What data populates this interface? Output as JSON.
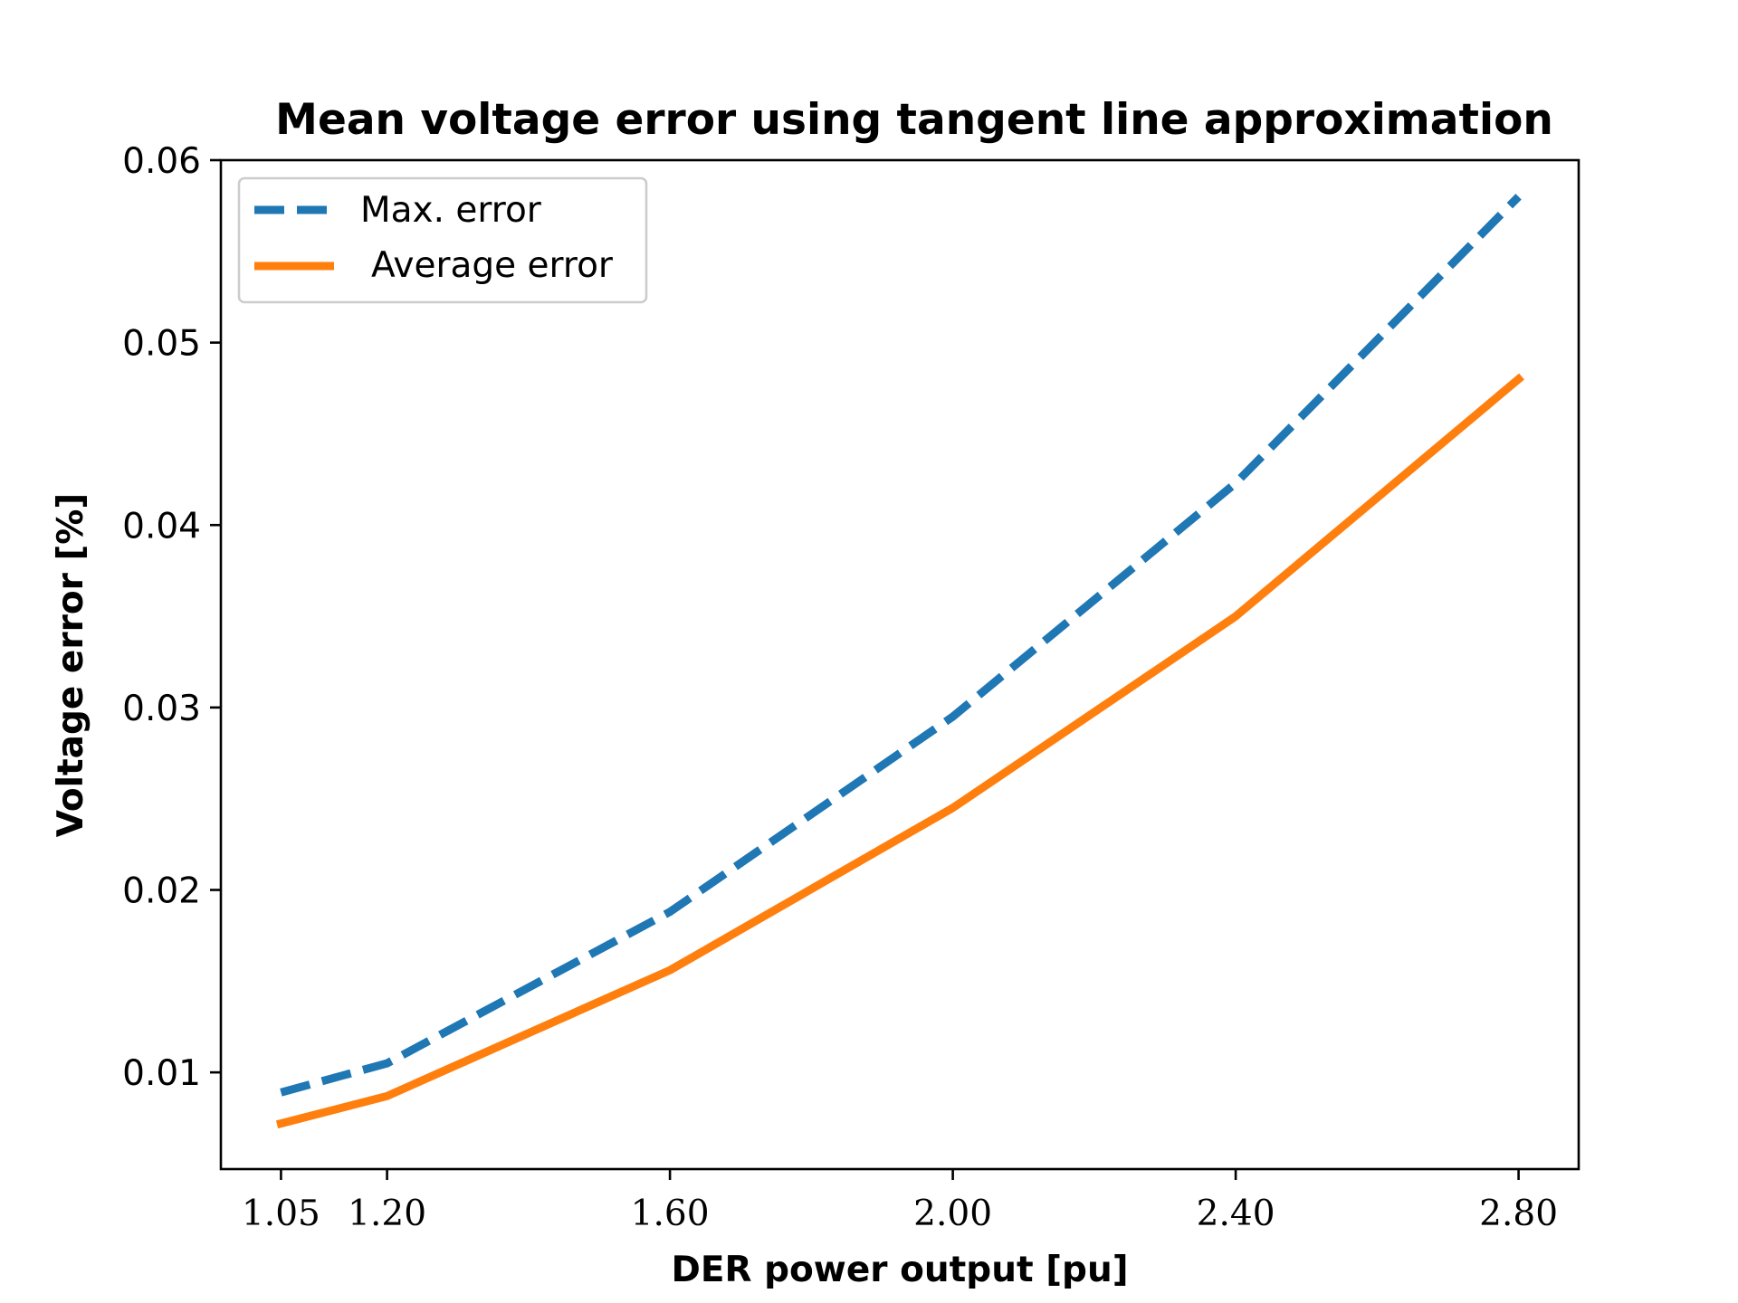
{
  "chart_data": {
    "type": "line",
    "title": "Mean voltage error using tangent line approximation",
    "xlabel": "DER power output [pu]",
    "ylabel": "Voltage error [%]",
    "x": [
      1.05,
      1.2,
      1.6,
      2.0,
      2.4,
      2.8
    ],
    "x_tick_labels": [
      "1.05",
      "1.20",
      "1.60",
      "2.00",
      "2.40",
      "2.80"
    ],
    "y_ticks": [
      0.01,
      0.02,
      0.03,
      0.04,
      0.05,
      0.06
    ],
    "y_tick_labels": [
      "0.01",
      "0.02",
      "0.03",
      "0.04",
      "0.05",
      "0.06"
    ],
    "xlim": [
      0.965,
      2.885
    ],
    "ylim": [
      0.0047,
      0.06
    ],
    "grid": false,
    "legend_position": "upper-left",
    "series": [
      {
        "name": "Max. error",
        "values": [
          0.0089,
          0.0105,
          0.0188,
          0.0295,
          0.0423,
          0.058
        ],
        "color": "#1f77b4",
        "style": "dashed"
      },
      {
        "name": "Average error",
        "values": [
          0.0072,
          0.0087,
          0.0156,
          0.0245,
          0.035,
          0.048
        ],
        "color": "#ff7f0e",
        "style": "solid"
      }
    ]
  }
}
